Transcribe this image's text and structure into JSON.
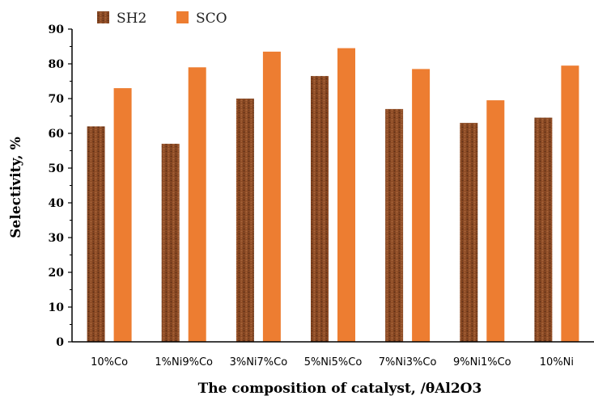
{
  "chart_data": {
    "type": "bar",
    "categories": [
      "10%Co",
      "1%Ni9%Co",
      "3%Ni7%Co",
      "5%Ni5%Co",
      "7%Ni3%Co",
      "9%Ni1%Co",
      "10%Ni"
    ],
    "series": [
      {
        "name": "SH2",
        "values": [
          62,
          57,
          70,
          76.5,
          67,
          63,
          64.5
        ],
        "color": "#8b4a24"
      },
      {
        "name": "SCO",
        "values": [
          73,
          79,
          83.5,
          84.5,
          78.5,
          69.5,
          79.5
        ],
        "color": "#ed7d31"
      }
    ],
    "title": "",
    "xlabel": "The composition of catalyst, /θAl2O3",
    "ylabel": "Selectivity, %",
    "ylim": [
      0,
      90
    ],
    "yticks": [
      0,
      10,
      20,
      30,
      40,
      50,
      60,
      70,
      80,
      90
    ],
    "grid": false,
    "legend_position": "top-left"
  }
}
